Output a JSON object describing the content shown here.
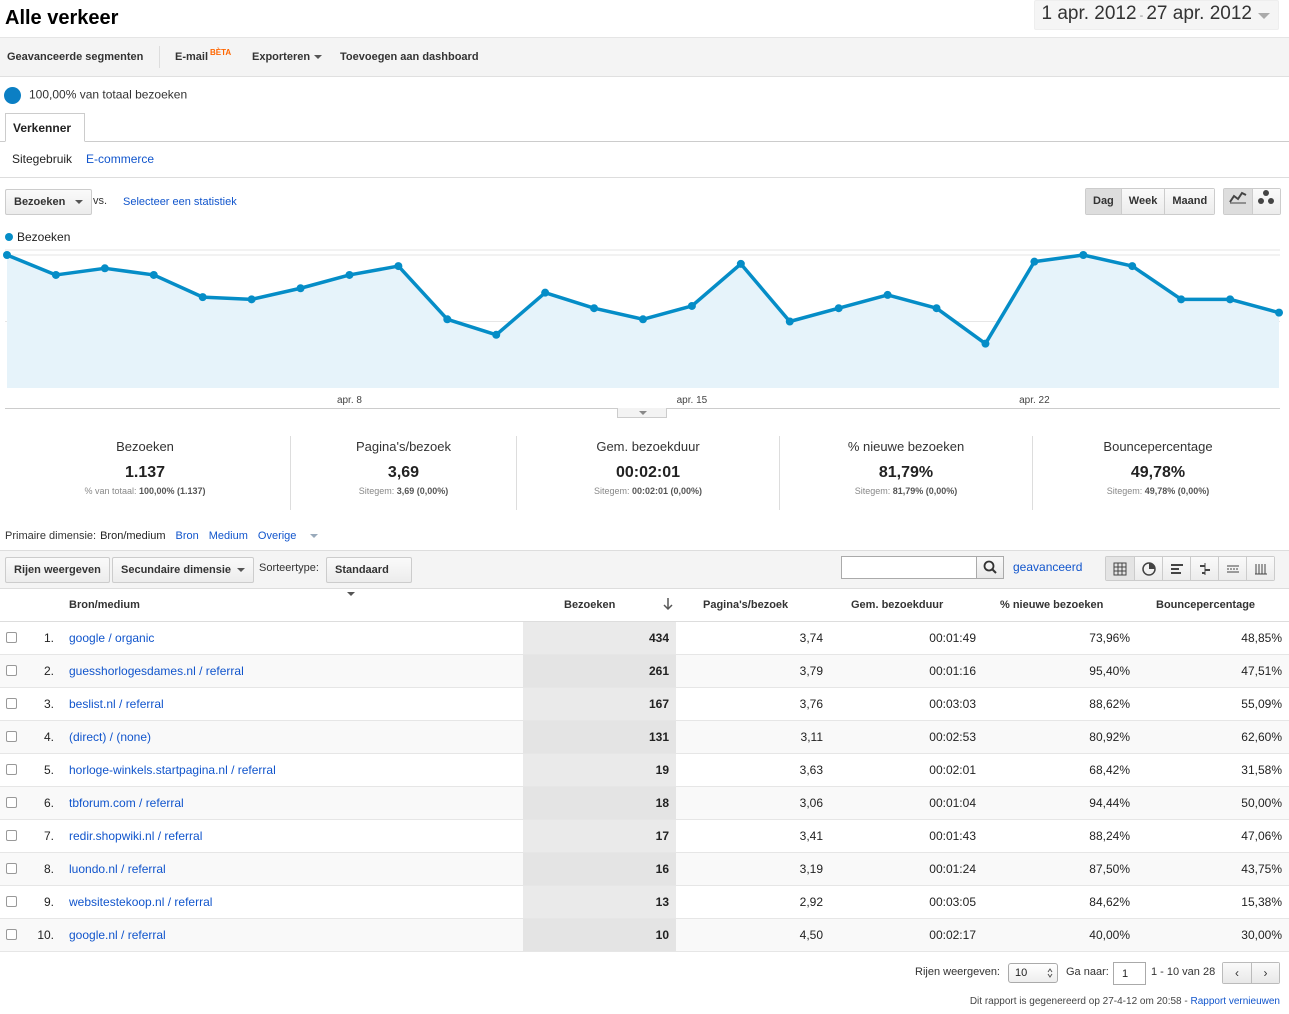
{
  "header": {
    "title": "Alle verkeer",
    "date_start": "1 apr. 2012",
    "date_sep": " - ",
    "date_end": "27 apr. 2012"
  },
  "toolbar": {
    "advanced_segments": "Geavanceerde segmenten",
    "email": "E-mail",
    "beta": "BÈTA",
    "export": "Exporteren",
    "add_dashboard": "Toevoegen aan dashboard"
  },
  "segment": {
    "label": "100,00% van totaal bezoeken"
  },
  "tabs": {
    "explorer": "Verkenner"
  },
  "subtabs": [
    "Sitegebruik",
    "E-commerce"
  ],
  "chart_controls": {
    "metric": "Bezoeken",
    "vs": "vs.",
    "select_metric": "Selecteer een statistiek",
    "periods": [
      "Dag",
      "Week",
      "Maand"
    ]
  },
  "chart_data": {
    "type": "area",
    "title": "",
    "series": [
      {
        "name": "Bezoeken",
        "color": "#058dc7",
        "values": [
          60,
          51,
          54,
          51,
          41,
          40,
          45,
          51,
          55,
          31,
          24,
          43,
          36,
          31,
          37,
          56,
          30,
          36,
          42,
          36,
          20,
          57,
          60,
          55,
          40,
          40,
          34
        ]
      }
    ],
    "x": [
      "1 apr.",
      "2 apr.",
      "3 apr.",
      "4 apr.",
      "5 apr.",
      "6 apr.",
      "7 apr.",
      "8 apr.",
      "9 apr.",
      "10 apr.",
      "11 apr.",
      "12 apr.",
      "13 apr.",
      "14 apr.",
      "15 apr.",
      "16 apr.",
      "17 apr.",
      "18 apr.",
      "19 apr.",
      "20 apr.",
      "21 apr.",
      "22 apr.",
      "23 apr.",
      "24 apr.",
      "25 apr.",
      "26 apr.",
      "27 apr."
    ],
    "x_tick_labels": [
      {
        "index": 7,
        "label": "apr. 8"
      },
      {
        "index": 14,
        "label": "apr. 15"
      },
      {
        "index": 21,
        "label": "apr. 22"
      }
    ],
    "y_ticks": [
      30,
      60
    ],
    "ylim": [
      0,
      60
    ],
    "grid": true,
    "legend": "top-left"
  },
  "scorecards": [
    {
      "label": "Bezoeken",
      "value": "1.137",
      "sub_prefix": "% van totaal:",
      "sub_value": "100,00% (1.137)"
    },
    {
      "label": "Pagina's/bezoek",
      "value": "3,69",
      "sub_prefix": "Sitegem:",
      "sub_value": "3,69 (0,00%)"
    },
    {
      "label": "Gem. bezoekduur",
      "value": "00:02:01",
      "sub_prefix": "Sitegem:",
      "sub_value": "00:02:01 (0,00%)"
    },
    {
      "label": "% nieuwe bezoeken",
      "value": "81,79%",
      "sub_prefix": "Sitegem:",
      "sub_value": "81,79% (0,00%)"
    },
    {
      "label": "Bouncepercentage",
      "value": "49,78%",
      "sub_prefix": "Sitegem:",
      "sub_value": "49,78% (0,00%)"
    }
  ],
  "primary_dimension": {
    "label": "Primaire dimensie:",
    "current": "Bron/medium",
    "options": [
      "Bron",
      "Medium",
      "Overige"
    ]
  },
  "table_controls": {
    "rows_button": "Rijen weergeven",
    "secondary_dim": "Secundaire dimensie",
    "sort_type_label": "Sorteertype:",
    "sort_type": "Standaard",
    "search_placeholder": "",
    "advanced": "geavanceerd"
  },
  "table": {
    "headers": [
      "Bron/medium",
      "Bezoeken",
      "Pagina's/bezoek",
      "Gem. bezoekduur",
      "% nieuwe bezoeken",
      "Bouncepercentage"
    ],
    "rows": [
      {
        "n": "1.",
        "src": "google / organic",
        "visits": "434",
        "ppv": "3,74",
        "dur": "00:01:49",
        "new": "73,96%",
        "bounce": "48,85%"
      },
      {
        "n": "2.",
        "src": "guesshorlogesdames.nl / referral",
        "visits": "261",
        "ppv": "3,79",
        "dur": "00:01:16",
        "new": "95,40%",
        "bounce": "47,51%"
      },
      {
        "n": "3.",
        "src": "beslist.nl / referral",
        "visits": "167",
        "ppv": "3,76",
        "dur": "00:03:03",
        "new": "88,62%",
        "bounce": "55,09%"
      },
      {
        "n": "4.",
        "src": "(direct) / (none)",
        "visits": "131",
        "ppv": "3,11",
        "dur": "00:02:53",
        "new": "80,92%",
        "bounce": "62,60%"
      },
      {
        "n": "5.",
        "src": "horloge-winkels.startpagina.nl / referral",
        "visits": "19",
        "ppv": "3,63",
        "dur": "00:02:01",
        "new": "68,42%",
        "bounce": "31,58%"
      },
      {
        "n": "6.",
        "src": "tbforum.com / referral",
        "visits": "18",
        "ppv": "3,06",
        "dur": "00:01:04",
        "new": "94,44%",
        "bounce": "50,00%"
      },
      {
        "n": "7.",
        "src": "redir.shopwiki.nl / referral",
        "visits": "17",
        "ppv": "3,41",
        "dur": "00:01:43",
        "new": "88,24%",
        "bounce": "47,06%"
      },
      {
        "n": "8.",
        "src": "luondo.nl / referral",
        "visits": "16",
        "ppv": "3,19",
        "dur": "00:01:24",
        "new": "87,50%",
        "bounce": "43,75%"
      },
      {
        "n": "9.",
        "src": "websitestekoop.nl / referral",
        "visits": "13",
        "ppv": "2,92",
        "dur": "00:03:05",
        "new": "84,62%",
        "bounce": "15,38%"
      },
      {
        "n": "10.",
        "src": "google.nl / referral",
        "visits": "10",
        "ppv": "4,50",
        "dur": "00:02:17",
        "new": "40,00%",
        "bounce": "30,00%"
      }
    ]
  },
  "pager": {
    "rows_label": "Rijen weergeven:",
    "rows_value": "10",
    "goto_label": "Ga naar:",
    "goto_value": "1",
    "range": "1 - 10 van 28",
    "prev": "‹",
    "next": "›"
  },
  "footer": {
    "text": "Dit rapport is gegenereerd op 27-4-12 om 20:58 - ",
    "refresh": "Rapport vernieuwen"
  }
}
